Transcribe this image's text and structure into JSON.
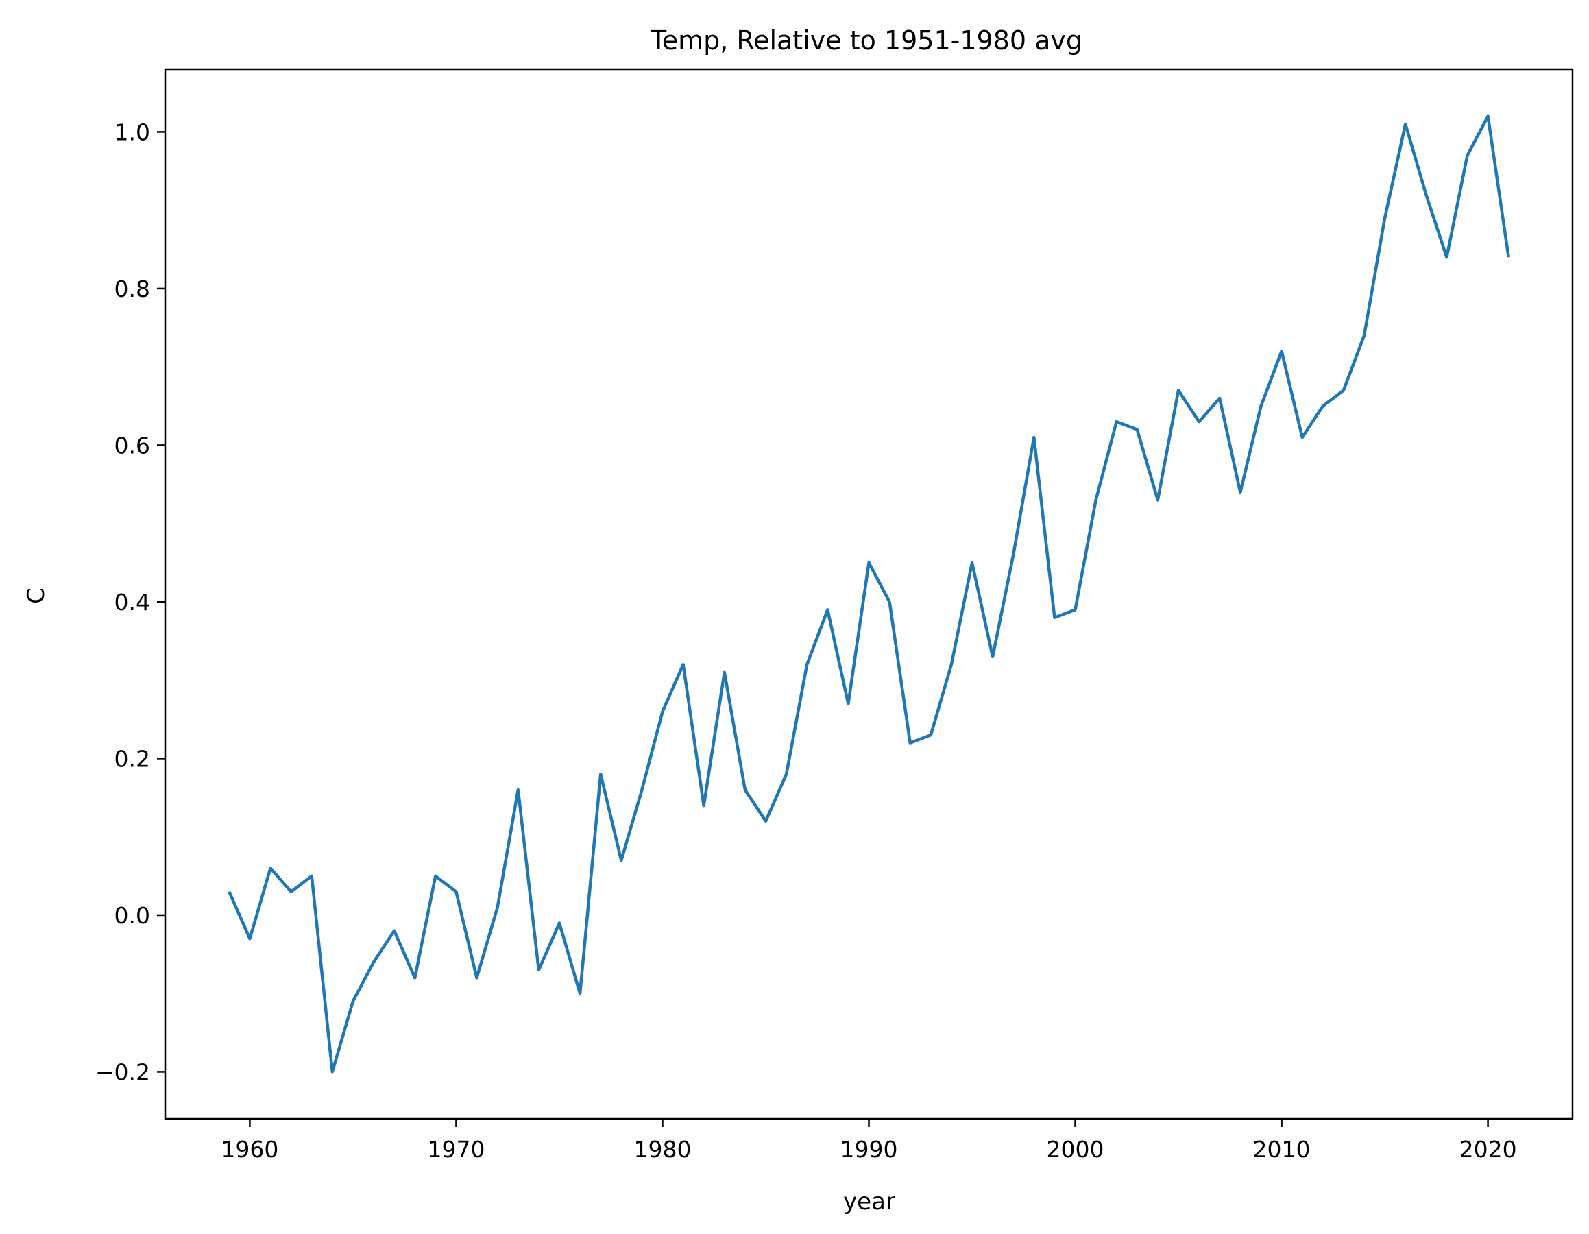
{
  "chart_data": {
    "type": "line",
    "title": "Temp, Relative to 1951-1980 avg",
    "xlabel": "year",
    "ylabel": "C",
    "xlim": [
      1955.9,
      2024.1
    ],
    "ylim": [
      -0.26,
      1.08
    ],
    "x_ticks": [
      1960,
      1970,
      1980,
      1990,
      2000,
      2010,
      2020
    ],
    "x_tick_labels": [
      "1960",
      "1970",
      "1980",
      "1990",
      "2000",
      "2010",
      "2020"
    ],
    "y_ticks": [
      -0.2,
      0.0,
      0.2,
      0.4,
      0.6,
      0.8,
      1.0
    ],
    "y_tick_labels": [
      "−0.2",
      "0.0",
      "0.2",
      "0.4",
      "0.6",
      "0.8",
      "1.0"
    ],
    "grid": false,
    "line_color": "#1f77b4",
    "series": [
      {
        "x": [
          1959,
          1960,
          1961,
          1962,
          1963,
          1964,
          1965,
          1966,
          1967,
          1968,
          1969,
          1970,
          1971,
          1972,
          1973,
          1974,
          1975,
          1976,
          1977,
          1978,
          1979,
          1980,
          1981,
          1982,
          1983,
          1984,
          1985,
          1986,
          1987,
          1988,
          1989,
          1990,
          1991,
          1992,
          1993,
          1994,
          1995,
          1996,
          1997,
          1998,
          1999,
          2000,
          2001,
          2002,
          2003,
          2004,
          2005,
          2006,
          2007,
          2008,
          2009,
          2010,
          2011,
          2012,
          2013,
          2014,
          2015,
          2016,
          2017,
          2018,
          2019,
          2020,
          2021
        ],
        "values": [
          0.03,
          -0.03,
          0.06,
          0.03,
          0.05,
          -0.2,
          -0.11,
          -0.06,
          -0.02,
          -0.08,
          0.05,
          0.03,
          -0.08,
          0.01,
          0.16,
          -0.07,
          -0.01,
          -0.1,
          0.18,
          0.07,
          0.16,
          0.26,
          0.32,
          0.14,
          0.31,
          0.16,
          0.12,
          0.18,
          0.32,
          0.39,
          0.27,
          0.45,
          0.4,
          0.22,
          0.23,
          0.32,
          0.45,
          0.33,
          0.46,
          0.61,
          0.38,
          0.39,
          0.53,
          0.63,
          0.62,
          0.53,
          0.67,
          0.63,
          0.66,
          0.54,
          0.65,
          0.72,
          0.61,
          0.65,
          0.67,
          0.74,
          0.89,
          1.01,
          0.92,
          0.84,
          0.97,
          1.02,
          0.84
        ]
      }
    ]
  }
}
